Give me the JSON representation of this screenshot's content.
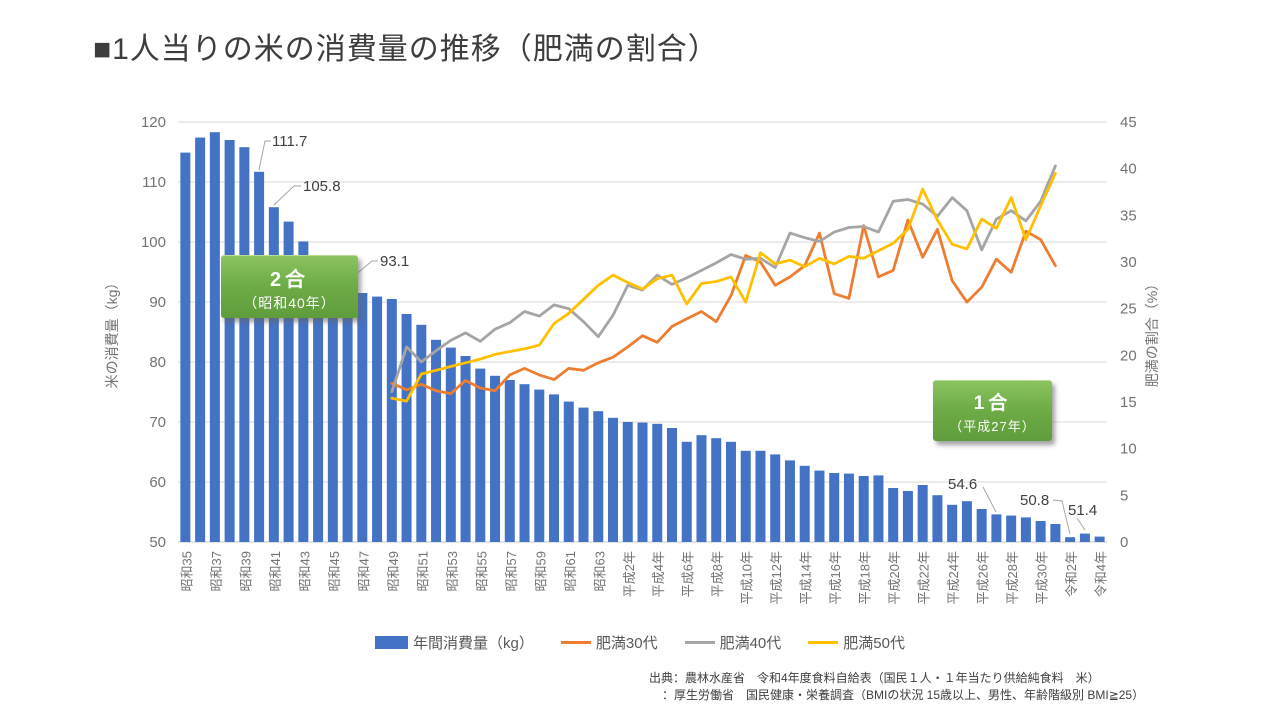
{
  "title": "■1人当りの米の消費量の推移（肥満の割合）",
  "callout_boxes": [
    {
      "title": "2合",
      "subtitle": "（昭和40年）"
    },
    {
      "title": "1合",
      "subtitle": "（平成27年）"
    }
  ],
  "source": {
    "line1": "出典：農林水産省　令和4年度食料自給表（国民１人・１年当たり供給純食料　米）",
    "line2": "：厚生労働省　国民健康・栄養調査（BMIの状況 15歳以上、男性、年齢階級別 BMI≧25）"
  },
  "chart_data": {
    "type": "bar+line combo",
    "left_axis": {
      "label": "米の消費量（kg）",
      "min": 50,
      "max": 120,
      "step": 10,
      "ticks": [
        50,
        60,
        70,
        80,
        90,
        100,
        110,
        120
      ]
    },
    "right_axis": {
      "label": "肥満の割合（%）",
      "min": 0,
      "max": 45,
      "step": 5,
      "ticks": [
        0,
        5,
        10,
        15,
        20,
        25,
        30,
        35,
        40,
        45
      ]
    },
    "x_tick_labels": [
      "昭和35",
      "昭和37",
      "昭和39",
      "昭和41",
      "昭和43",
      "昭和45",
      "昭和47",
      "昭和49",
      "昭和51",
      "昭和53",
      "昭和55",
      "昭和57",
      "昭和59",
      "昭和61",
      "昭和63",
      "平成2年",
      "平成4年",
      "平成6年",
      "平成8年",
      "平成10年",
      "平成12年",
      "平成14年",
      "平成16年",
      "平成18年",
      "平成20年",
      "平成22年",
      "平成24年",
      "平成26年",
      "平成28年",
      "平成30年",
      "令和2年",
      "令和4年"
    ],
    "grid": "horizontal, 10kg intervals, light gray",
    "legend_position": "bottom center",
    "bars": {
      "name": "年間消費量（kg）",
      "color": "#4472C4",
      "axis": "left",
      "values": [
        114.9,
        117.4,
        118.3,
        117.0,
        115.8,
        111.7,
        105.8,
        103.4,
        100.1,
        97.1,
        95.1,
        93.1,
        91.5,
        90.9,
        90.5,
        88.0,
        86.2,
        83.7,
        82.4,
        81.0,
        78.9,
        77.7,
        77.0,
        76.3,
        75.4,
        74.6,
        73.4,
        72.4,
        71.8,
        70.7,
        70.0,
        69.9,
        69.7,
        69.0,
        66.7,
        67.8,
        67.3,
        66.7,
        65.2,
        65.2,
        64.6,
        63.6,
        62.7,
        61.9,
        61.5,
        61.4,
        61.0,
        61.1,
        59.0,
        58.5,
        59.5,
        57.8,
        56.2,
        56.8,
        55.5,
        54.6,
        54.4,
        54.1,
        53.5,
        53.0,
        50.8,
        51.4,
        50.9
      ]
    },
    "lines": [
      {
        "name": "肥満30代",
        "color": "#ED7D31",
        "axis": "right",
        "start_index": 14,
        "values": [
          17.0,
          16.3,
          16.9,
          16.2,
          15.9,
          17.3,
          16.5,
          16.2,
          17.9,
          18.6,
          17.9,
          17.4,
          18.6,
          18.4,
          19.2,
          19.8,
          20.9,
          22.1,
          21.4,
          23.1,
          23.9,
          24.7,
          23.6,
          26.4,
          30.7,
          30.0,
          27.5,
          28.4,
          29.6,
          33.1,
          26.6,
          26.1,
          33.9,
          28.4,
          29.1,
          34.5,
          30.5,
          33.5,
          28.0,
          25.7,
          27.3,
          30.3,
          28.9,
          33.3,
          32.4,
          29.6
        ]
      },
      {
        "name": "肥満40代",
        "color": "#A5A5A5",
        "axis": "right",
        "start_index": 14,
        "values": [
          16.1,
          20.9,
          19.3,
          20.5,
          21.6,
          22.4,
          21.5,
          22.8,
          23.5,
          24.7,
          24.2,
          25.4,
          25.0,
          23.6,
          22.0,
          24.3,
          27.5,
          27.0,
          28.6,
          27.6,
          28.3,
          29.1,
          29.9,
          30.8,
          30.3,
          30.4,
          29.4,
          33.1,
          32.6,
          32.2,
          33.2,
          33.7,
          33.8,
          33.2,
          36.5,
          36.7,
          36.2,
          34.9,
          36.9,
          35.5,
          31.3,
          34.6,
          35.5,
          34.4,
          36.5,
          40.3
        ]
      },
      {
        "name": "肥満50代",
        "color": "#FFC000",
        "axis": "right",
        "start_index": 14,
        "values": [
          15.4,
          15.1,
          18.0,
          18.4,
          18.8,
          19.2,
          19.6,
          20.1,
          20.4,
          20.7,
          21.1,
          23.4,
          24.5,
          26.0,
          27.5,
          28.6,
          27.8,
          27.1,
          28.2,
          28.6,
          25.5,
          27.7,
          27.9,
          28.4,
          25.7,
          31.0,
          29.8,
          30.2,
          29.5,
          30.4,
          29.8,
          30.6,
          30.4,
          31.2,
          32.0,
          33.5,
          37.8,
          34.5,
          31.9,
          31.4,
          34.6,
          33.6,
          36.9,
          32.4,
          36.0,
          39.5
        ]
      }
    ],
    "annotations": [
      {
        "text": "111.7",
        "bar_index": 5
      },
      {
        "text": "105.8",
        "bar_index": 6
      },
      {
        "text": "93.1",
        "bar_index": 11
      },
      {
        "text": "54.6",
        "bar_index": 55
      },
      {
        "text": "50.8",
        "bar_index": 60
      },
      {
        "text": "51.4",
        "bar_index": 61
      }
    ],
    "colors": {
      "bar_blue": "#4472C4",
      "line_orange": "#ED7D31",
      "line_gray": "#A5A5A5",
      "line_yellow": "#FFC000",
      "callout_green": "#6fad48",
      "grid_gray": "#d9d9d9",
      "tick_text": "#737373",
      "annotation_text": "#404040"
    }
  }
}
